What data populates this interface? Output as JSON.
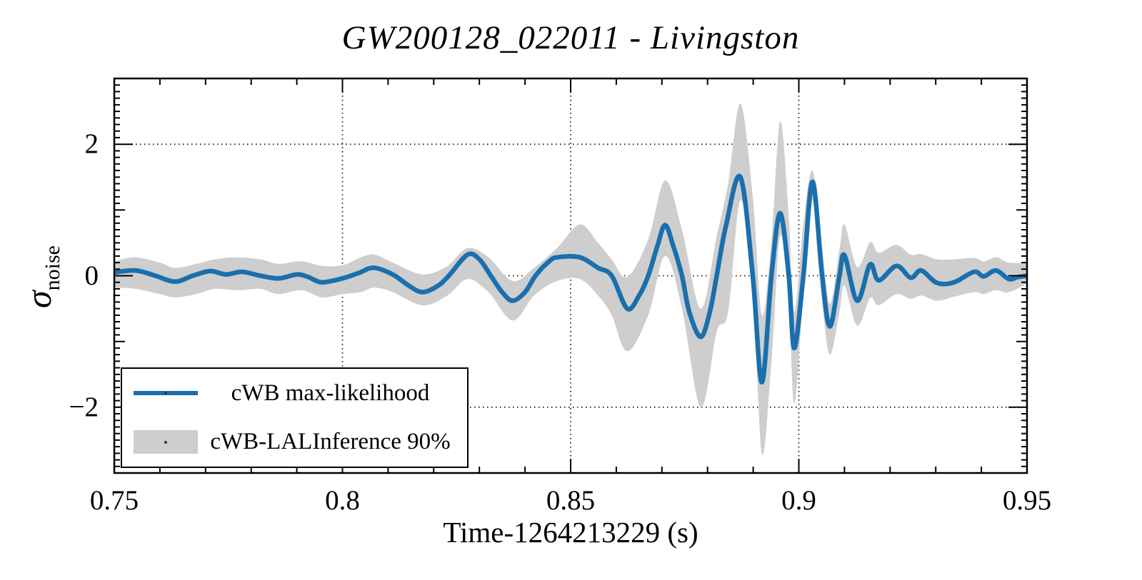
{
  "chart_data": {
    "type": "line",
    "title": "GW200128_022011 - Livingston",
    "xlabel": "Time-1264213229 (s)",
    "ylabel_symbol": "σ",
    "ylabel_subscript": "noise",
    "xlim": [
      0.75,
      0.95
    ],
    "ylim": [
      -3,
      3
    ],
    "x_major_ticks": [
      0.75,
      0.8,
      0.85,
      0.9,
      0.95
    ],
    "x_tick_labels": [
      "0.75",
      "0.8",
      "0.85",
      "0.9",
      "0.95"
    ],
    "x_minor_step": 0.01,
    "y_major_ticks": [
      -2,
      0,
      2
    ],
    "y_tick_labels": [
      "−2",
      "0",
      "2"
    ],
    "y_medium_ticks": [
      -1,
      1
    ],
    "y_minor_step": 0.1,
    "x_gridlines": [
      0.8,
      0.85,
      0.9
    ],
    "y_gridlines": [
      -2,
      0,
      2
    ],
    "grid_style": "dotted",
    "legend_position": "bottom-left",
    "colors": {
      "line": "#1a6fad",
      "band": "#cecece",
      "frame": "#000000",
      "grid": "#1a1a1a"
    },
    "series": [
      {
        "name": "cWB max-likelihood",
        "type": "line",
        "color": "#1a6fad",
        "points": [
          [
            0.75,
            0.05
          ],
          [
            0.7547,
            0.08
          ],
          [
            0.759,
            0.0
          ],
          [
            0.7633,
            -0.09
          ],
          [
            0.7672,
            0.0
          ],
          [
            0.771,
            0.07
          ],
          [
            0.7745,
            0.02
          ],
          [
            0.778,
            0.06
          ],
          [
            0.782,
            0.0
          ],
          [
            0.786,
            -0.04
          ],
          [
            0.79,
            0.02
          ],
          [
            0.7925,
            -0.02
          ],
          [
            0.7955,
            -0.1
          ],
          [
            0.8,
            -0.04
          ],
          [
            0.8035,
            0.04
          ],
          [
            0.8068,
            0.12
          ],
          [
            0.811,
            0.02
          ],
          [
            0.8145,
            -0.15
          ],
          [
            0.8176,
            -0.25
          ],
          [
            0.821,
            -0.15
          ],
          [
            0.8233,
            0.0
          ],
          [
            0.8274,
            0.32
          ],
          [
            0.83,
            0.25
          ],
          [
            0.8325,
            0.0
          ],
          [
            0.835,
            -0.25
          ],
          [
            0.8373,
            -0.38
          ],
          [
            0.84,
            -0.25
          ],
          [
            0.8423,
            0.0
          ],
          [
            0.845,
            0.2
          ],
          [
            0.847,
            0.28
          ],
          [
            0.852,
            0.28
          ],
          [
            0.856,
            0.12
          ],
          [
            0.859,
            0.0
          ],
          [
            0.8624,
            -0.5
          ],
          [
            0.865,
            -0.3
          ],
          [
            0.867,
            0.0
          ],
          [
            0.869,
            0.45
          ],
          [
            0.8707,
            0.77
          ],
          [
            0.8725,
            0.45
          ],
          [
            0.8744,
            0.0
          ],
          [
            0.876,
            -0.55
          ],
          [
            0.8785,
            -0.93
          ],
          [
            0.8805,
            -0.55
          ],
          [
            0.882,
            0.0
          ],
          [
            0.884,
            0.75
          ],
          [
            0.8872,
            1.5
          ],
          [
            0.8899,
            0.0
          ],
          [
            0.8919,
            -1.62
          ],
          [
            0.894,
            0.0
          ],
          [
            0.8959,
            0.95
          ],
          [
            0.8978,
            0.0
          ],
          [
            0.899,
            -1.1
          ],
          [
            0.901,
            0.0
          ],
          [
            0.903,
            1.43
          ],
          [
            0.9051,
            0.0
          ],
          [
            0.9068,
            -0.77
          ],
          [
            0.9089,
            0.0
          ],
          [
            0.91,
            0.31
          ],
          [
            0.9128,
            -0.38
          ],
          [
            0.9156,
            0.17
          ],
          [
            0.9175,
            -0.07
          ],
          [
            0.9214,
            0.15
          ],
          [
            0.9245,
            -0.03
          ],
          [
            0.9268,
            0.08
          ],
          [
            0.9303,
            -0.11
          ],
          [
            0.934,
            -0.1
          ],
          [
            0.9384,
            0.06
          ],
          [
            0.9405,
            -0.01
          ],
          [
            0.9432,
            0.08
          ],
          [
            0.946,
            -0.05
          ],
          [
            0.948,
            -0.02
          ],
          [
            0.95,
            0.0
          ]
        ]
      },
      {
        "name": "cWB-LALInference 90%",
        "type": "band",
        "color": "#cecece",
        "points": [
          [
            0.75,
            -0.18,
            0.22
          ],
          [
            0.7547,
            -0.2,
            0.28
          ],
          [
            0.76,
            -0.28,
            0.2
          ],
          [
            0.7633,
            -0.33,
            0.12
          ],
          [
            0.768,
            -0.28,
            0.18
          ],
          [
            0.772,
            -0.2,
            0.25
          ],
          [
            0.777,
            -0.22,
            0.28
          ],
          [
            0.782,
            -0.2,
            0.25
          ],
          [
            0.786,
            -0.28,
            0.18
          ],
          [
            0.791,
            -0.22,
            0.22
          ],
          [
            0.7955,
            -0.33,
            0.15
          ],
          [
            0.8,
            -0.28,
            0.16
          ],
          [
            0.804,
            -0.25,
            0.28
          ],
          [
            0.807,
            -0.18,
            0.32
          ],
          [
            0.811,
            -0.25,
            0.2
          ],
          [
            0.8176,
            -0.45,
            0.02
          ],
          [
            0.823,
            -0.3,
            0.15
          ],
          [
            0.8274,
            -0.05,
            0.42
          ],
          [
            0.832,
            -0.25,
            0.28
          ],
          [
            0.8373,
            -0.68,
            -0.08
          ],
          [
            0.842,
            -0.3,
            0.12
          ],
          [
            0.847,
            -0.08,
            0.42
          ],
          [
            0.852,
            -0.05,
            0.78
          ],
          [
            0.856,
            -0.3,
            0.5
          ],
          [
            0.859,
            -0.6,
            0.25
          ],
          [
            0.8624,
            -1.15,
            -0.02
          ],
          [
            0.867,
            -0.6,
            0.55
          ],
          [
            0.8707,
            0.3,
            1.45
          ],
          [
            0.8744,
            -0.5,
            0.7
          ],
          [
            0.8785,
            -2.0,
            -0.5
          ],
          [
            0.882,
            -0.85,
            0.6
          ],
          [
            0.8845,
            -0.55,
            1.4
          ],
          [
            0.8872,
            1.15,
            2.62
          ],
          [
            0.8899,
            -0.2,
            1.2
          ],
          [
            0.8919,
            -2.7,
            -0.6
          ],
          [
            0.894,
            -1.3,
            0.55
          ],
          [
            0.8959,
            0.6,
            2.35
          ],
          [
            0.8978,
            -0.4,
            0.9
          ],
          [
            0.899,
            -1.95,
            -0.55
          ],
          [
            0.901,
            -0.3,
            0.8
          ],
          [
            0.903,
            1.15,
            1.6
          ],
          [
            0.9051,
            -0.4,
            0.45
          ],
          [
            0.9068,
            -1.2,
            -0.43
          ],
          [
            0.9089,
            -0.55,
            0.4
          ],
          [
            0.91,
            -0.15,
            0.78
          ],
          [
            0.9128,
            -0.76,
            0.13
          ],
          [
            0.9156,
            -0.34,
            0.51
          ],
          [
            0.9175,
            -0.45,
            0.35
          ],
          [
            0.9214,
            -0.28,
            0.47
          ],
          [
            0.9245,
            -0.35,
            0.32
          ],
          [
            0.9268,
            -0.3,
            0.33
          ],
          [
            0.9303,
            -0.38,
            0.25
          ],
          [
            0.934,
            -0.32,
            0.25
          ],
          [
            0.9384,
            -0.25,
            0.27
          ],
          [
            0.9405,
            -0.28,
            0.22
          ],
          [
            0.9432,
            -0.22,
            0.28
          ],
          [
            0.946,
            -0.25,
            0.2
          ],
          [
            0.95,
            -0.12,
            0.2
          ]
        ]
      }
    ]
  }
}
